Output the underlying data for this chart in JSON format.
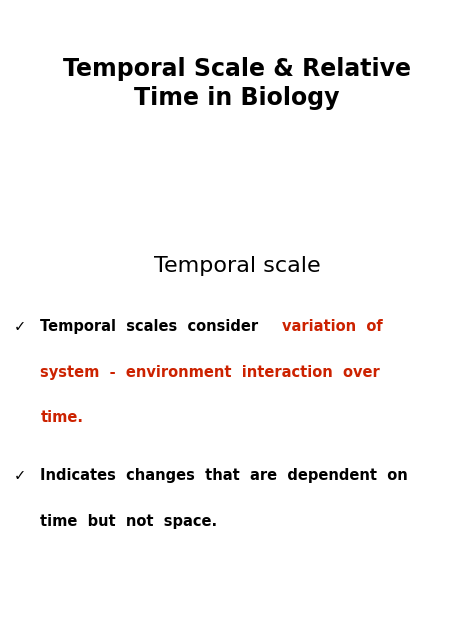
{
  "background_color": "#ffffff",
  "title_line1": "Temporal Scale & Relative",
  "title_line2": "Time in Biology",
  "title_fontsize": 17,
  "title_fontweight": "bold",
  "title_color": "#000000",
  "subtitle": "Temporal scale",
  "subtitle_fontsize": 16,
  "subtitle_color": "#000000",
  "bullet_fontsize": 10.5,
  "bullet_color_black": "#000000",
  "bullet_color_red": "#cc2200",
  "checkmark": "✓",
  "figwidth": 4.74,
  "figheight": 6.32,
  "dpi": 100
}
